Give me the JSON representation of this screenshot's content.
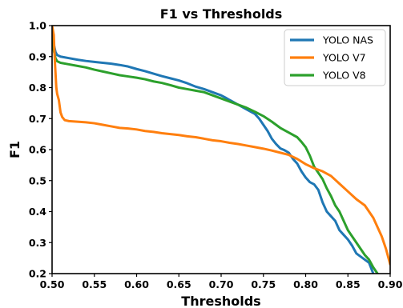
{
  "chart_data": {
    "type": "line",
    "title": "F1 vs Thresholds",
    "xlabel": "Thresholds",
    "ylabel": "F1",
    "xlim": [
      0.5,
      0.9
    ],
    "ylim": [
      0.2,
      1.0
    ],
    "xticks": [
      "0.50",
      "0.55",
      "0.60",
      "0.65",
      "0.70",
      "0.75",
      "0.80",
      "0.85",
      "0.90"
    ],
    "yticks": [
      "0.2",
      "0.3",
      "0.4",
      "0.5",
      "0.6",
      "0.7",
      "0.8",
      "0.9",
      "1.0"
    ],
    "grid": false,
    "legend_position": "top-right",
    "series": [
      {
        "name": "YOLO NAS",
        "color": "#1f77b4",
        "x": [
          0.5,
          0.502,
          0.504,
          0.506,
          0.51,
          0.52,
          0.53,
          0.54,
          0.55,
          0.56,
          0.57,
          0.58,
          0.59,
          0.6,
          0.61,
          0.62,
          0.63,
          0.64,
          0.65,
          0.66,
          0.67,
          0.68,
          0.69,
          0.7,
          0.705,
          0.71,
          0.72,
          0.73,
          0.74,
          0.745,
          0.75,
          0.755,
          0.76,
          0.765,
          0.77,
          0.775,
          0.78,
          0.785,
          0.79,
          0.795,
          0.8,
          0.805,
          0.81,
          0.815,
          0.82,
          0.825,
          0.83,
          0.835,
          0.84,
          0.845,
          0.85,
          0.855,
          0.86,
          0.865,
          0.87,
          0.875,
          0.88
        ],
        "y": [
          0.98,
          0.94,
          0.915,
          0.905,
          0.9,
          0.895,
          0.89,
          0.886,
          0.883,
          0.88,
          0.877,
          0.873,
          0.868,
          0.86,
          0.853,
          0.845,
          0.837,
          0.83,
          0.823,
          0.814,
          0.803,
          0.795,
          0.785,
          0.775,
          0.768,
          0.76,
          0.745,
          0.73,
          0.715,
          0.7,
          0.68,
          0.66,
          0.635,
          0.618,
          0.604,
          0.598,
          0.59,
          0.57,
          0.555,
          0.53,
          0.51,
          0.495,
          0.488,
          0.47,
          0.43,
          0.4,
          0.385,
          0.37,
          0.34,
          0.325,
          0.31,
          0.29,
          0.265,
          0.255,
          0.245,
          0.235,
          0.2
        ]
      },
      {
        "name": "YOLO V7",
        "color": "#ff7f0e",
        "x": [
          0.5,
          0.502,
          0.503,
          0.504,
          0.505,
          0.506,
          0.507,
          0.508,
          0.51,
          0.512,
          0.515,
          0.52,
          0.53,
          0.54,
          0.55,
          0.56,
          0.57,
          0.58,
          0.59,
          0.6,
          0.61,
          0.62,
          0.63,
          0.64,
          0.65,
          0.66,
          0.67,
          0.68,
          0.69,
          0.7,
          0.71,
          0.72,
          0.73,
          0.74,
          0.75,
          0.76,
          0.77,
          0.78,
          0.79,
          0.8,
          0.81,
          0.82,
          0.83,
          0.84,
          0.85,
          0.86,
          0.87,
          0.875,
          0.88,
          0.885,
          0.89,
          0.895,
          0.9
        ],
        "y": [
          1.0,
          0.97,
          0.9,
          0.85,
          0.8,
          0.78,
          0.77,
          0.76,
          0.72,
          0.705,
          0.695,
          0.692,
          0.69,
          0.688,
          0.685,
          0.68,
          0.675,
          0.67,
          0.668,
          0.665,
          0.66,
          0.657,
          0.653,
          0.65,
          0.647,
          0.643,
          0.64,
          0.635,
          0.63,
          0.627,
          0.622,
          0.618,
          0.613,
          0.608,
          0.603,
          0.597,
          0.59,
          0.583,
          0.57,
          0.553,
          0.54,
          0.53,
          0.515,
          0.49,
          0.465,
          0.44,
          0.42,
          0.4,
          0.38,
          0.35,
          0.32,
          0.28,
          0.23
        ]
      },
      {
        "name": "YOLO V8",
        "color": "#2ca02c",
        "x": [
          0.5,
          0.502,
          0.504,
          0.506,
          0.51,
          0.52,
          0.53,
          0.54,
          0.55,
          0.56,
          0.57,
          0.58,
          0.59,
          0.6,
          0.61,
          0.62,
          0.63,
          0.64,
          0.65,
          0.66,
          0.67,
          0.68,
          0.69,
          0.7,
          0.71,
          0.72,
          0.73,
          0.74,
          0.75,
          0.76,
          0.77,
          0.78,
          0.79,
          0.795,
          0.8,
          0.805,
          0.81,
          0.815,
          0.82,
          0.825,
          0.83,
          0.835,
          0.84,
          0.845,
          0.85,
          0.855,
          0.86,
          0.865,
          0.87,
          0.875,
          0.88,
          0.885
        ],
        "y": [
          0.96,
          0.92,
          0.895,
          0.885,
          0.88,
          0.875,
          0.87,
          0.865,
          0.858,
          0.852,
          0.846,
          0.84,
          0.836,
          0.832,
          0.827,
          0.82,
          0.815,
          0.808,
          0.8,
          0.795,
          0.79,
          0.785,
          0.775,
          0.765,
          0.755,
          0.745,
          0.735,
          0.722,
          0.708,
          0.69,
          0.67,
          0.655,
          0.64,
          0.625,
          0.608,
          0.58,
          0.545,
          0.525,
          0.505,
          0.475,
          0.45,
          0.42,
          0.4,
          0.37,
          0.34,
          0.32,
          0.3,
          0.28,
          0.26,
          0.245,
          0.22,
          0.2
        ]
      }
    ]
  }
}
